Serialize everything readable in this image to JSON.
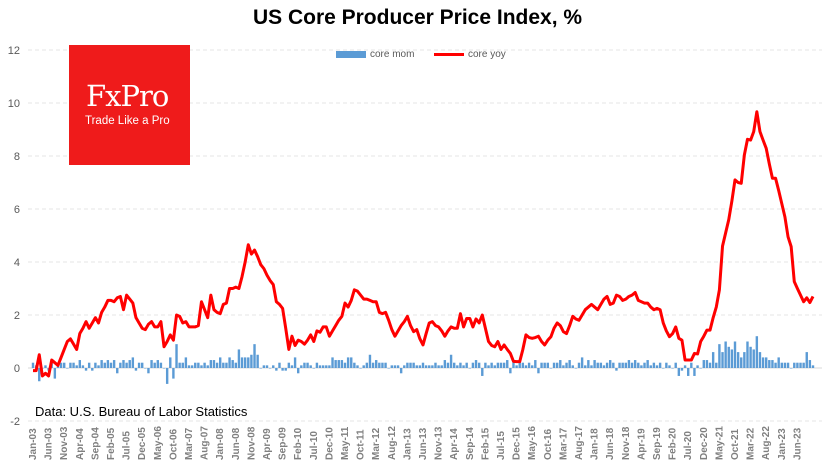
{
  "chart_data": {
    "type": "bar+line",
    "title": "US Core Producer Price Index, %",
    "source_note": "Data: U.S. Bureau of Labor Statistics",
    "frequency": "monthly",
    "start": "Jan-03",
    "x_tick_labels": [
      "Jan-03",
      "Jun-03",
      "Nov-03",
      "Apr-04",
      "Sep-04",
      "Feb-05",
      "Jul-05",
      "Dec-05",
      "May-06",
      "Oct-06",
      "Mar-07",
      "Aug-07",
      "Jan-08",
      "Jun-08",
      "Nov-08",
      "Apr-09",
      "Sep-09",
      "Feb-10",
      "Jul-10",
      "Dec-10",
      "May-11",
      "Oct-11",
      "Mar-12",
      "Aug-12",
      "Jan-13",
      "Jun-13",
      "Nov-13",
      "Apr-14",
      "Sep-14",
      "Feb-15",
      "Jul-15",
      "Dec-15",
      "May-16",
      "Oct-16",
      "Mar-17",
      "Aug-17",
      "Jan-18",
      "Jun-18",
      "Nov-18",
      "Apr-19",
      "Sep-19",
      "Feb-20",
      "Jul-20",
      "Dec-20",
      "May-21",
      "Oct-21",
      "Mar-22",
      "Aug-22",
      "Jan-23",
      "Jun-23"
    ],
    "y_ticks": [
      "12",
      "10",
      "8",
      "6",
      "4",
      "2",
      "0",
      "-2"
    ],
    "ylim": [
      -2,
      12
    ],
    "grid": true,
    "legend_position": "top",
    "series": [
      {
        "name": "core mom",
        "type": "bar",
        "color": "#5b9bd5",
        "values": [
          0.2,
          0.1,
          -0.5,
          0.0,
          0.1,
          -0.1,
          0.2,
          -0.4,
          0.1,
          0.2,
          0.2,
          0.0,
          0.2,
          0.2,
          0.1,
          0.3,
          0.1,
          -0.1,
          0.2,
          -0.1,
          0.2,
          0.1,
          0.3,
          0.2,
          0.3,
          0.2,
          0.3,
          -0.2,
          0.2,
          0.3,
          0.2,
          0.3,
          0.4,
          -0.1,
          0.2,
          0.2,
          0.0,
          -0.2,
          0.3,
          0.2,
          0.3,
          0.2,
          0.0,
          -0.6,
          0.4,
          -0.4,
          0.9,
          0.2,
          0.2,
          0.4,
          0.1,
          0.1,
          0.2,
          0.2,
          0.1,
          0.2,
          0.1,
          0.3,
          0.3,
          0.2,
          0.4,
          0.2,
          0.2,
          0.4,
          0.3,
          0.2,
          0.7,
          0.4,
          0.4,
          0.4,
          0.5,
          0.9,
          0.5,
          0.0,
          0.1,
          0.1,
          0.0,
          0.1,
          -0.1,
          0.2,
          -0.1,
          -0.1,
          0.2,
          0.1,
          0.4,
          -0.2,
          0.1,
          0.2,
          0.2,
          0.1,
          0.0,
          0.2,
          0.1,
          0.1,
          0.1,
          0.1,
          0.4,
          0.3,
          0.3,
          0.3,
          0.2,
          0.4,
          0.4,
          0.2,
          0.1,
          0.0,
          0.1,
          0.2,
          0.5,
          0.2,
          0.3,
          0.2,
          0.2,
          0.2,
          0.0,
          0.1,
          0.1,
          0.1,
          -0.2,
          0.1,
          0.2,
          0.2,
          0.2,
          0.1,
          0.1,
          0.2,
          0.1,
          0.1,
          0.1,
          0.2,
          0.1,
          0.1,
          0.3,
          0.2,
          0.5,
          0.2,
          0.1,
          0.2,
          0.1,
          0.2,
          0.0,
          0.2,
          0.3,
          0.2,
          -0.3,
          0.2,
          0.1,
          0.2,
          0.1,
          0.2,
          0.2,
          0.2,
          0.3,
          -0.2,
          0.3,
          0.1,
          0.3,
          0.2,
          0.1,
          0.2,
          0.1,
          0.3,
          -0.2,
          0.2,
          0.2,
          0.2,
          0.0,
          0.2,
          0.2,
          0.3,
          0.1,
          0.2,
          0.3,
          0.1,
          0.0,
          0.2,
          0.4,
          0.1,
          0.3,
          0.1,
          0.3,
          0.2,
          0.2,
          0.1,
          0.2,
          0.3,
          0.2,
          -0.1,
          0.2,
          0.2,
          0.2,
          0.3,
          0.2,
          0.3,
          0.2,
          0.1,
          0.2,
          0.3,
          0.1,
          0.2,
          0.1,
          0.2,
          0.0,
          0.2,
          0.1,
          0.0,
          0.2,
          -0.3,
          -0.1,
          0.1,
          -0.3,
          0.2,
          -0.3,
          0.1,
          0.0,
          0.3,
          0.3,
          0.2,
          0.6,
          0.2,
          0.9,
          0.6,
          1.0,
          0.8,
          0.7,
          1.0,
          0.6,
          0.4,
          0.6,
          1.0,
          0.8,
          0.7,
          1.2,
          0.6,
          0.4,
          0.4,
          0.3,
          0.3,
          0.2,
          0.4,
          0.2,
          0.2,
          0.2,
          0.0,
          0.2,
          0.2,
          0.2,
          0.2,
          0.6,
          0.3,
          0.1
        ]
      },
      {
        "name": "core yoy",
        "type": "line",
        "color": "#ff0000",
        "values": [
          -0.1,
          -0.1,
          0.5,
          -0.3,
          -0.2,
          -0.3,
          0.3,
          0.2,
          0.1,
          0.4,
          0.7,
          1.0,
          1.1,
          0.9,
          0.7,
          1.3,
          1.5,
          1.75,
          1.5,
          1.7,
          1.9,
          1.7,
          2.1,
          2.3,
          2.55,
          2.55,
          2.5,
          2.65,
          2.7,
          2.2,
          2.75,
          2.6,
          2.45,
          1.9,
          1.7,
          1.5,
          1.45,
          1.65,
          1.75,
          1.55,
          1.55,
          1.75,
          0.8,
          1.0,
          1.25,
          1.05,
          2.0,
          1.95,
          1.7,
          1.75,
          1.55,
          1.55,
          1.55,
          1.6,
          2.5,
          2.2,
          1.9,
          2.75,
          2.2,
          2.1,
          2.05,
          2.4,
          2.45,
          3.0,
          3.0,
          3.05,
          3.0,
          3.45,
          4.0,
          4.65,
          4.3,
          4.45,
          4.2,
          3.9,
          3.75,
          3.5,
          3.3,
          3.15,
          2.5,
          2.4,
          2.25,
          1.5,
          0.7,
          1.2,
          0.85,
          1.05,
          1.0,
          0.9,
          1.05,
          1.25,
          1.0,
          1.4,
          1.35,
          1.55,
          1.55,
          1.2,
          1.4,
          1.6,
          1.8,
          1.95,
          2.45,
          2.3,
          2.55,
          2.95,
          2.9,
          2.75,
          2.6,
          2.6,
          2.55,
          2.5,
          2.5,
          2.1,
          2.05,
          2.1,
          1.8,
          1.45,
          1.2,
          1.4,
          1.6,
          1.75,
          1.95,
          1.6,
          1.37,
          1.45,
          1.1,
          0.87,
          1.3,
          1.7,
          1.75,
          1.6,
          1.55,
          1.4,
          1.2,
          1.4,
          1.55,
          1.5,
          1.5,
          2.05,
          1.55,
          1.87,
          1.87,
          1.55,
          1.85,
          1.7,
          2.0,
          1.5,
          1.0,
          0.85,
          0.8,
          1.0,
          0.7,
          0.87,
          0.7,
          0.55,
          0.25,
          0.24,
          0.24,
          0.7,
          1.25,
          1.15,
          1.12,
          1.15,
          1.2,
          1.0,
          0.87,
          1.05,
          1.18,
          1.5,
          1.7,
          1.6,
          1.37,
          1.3,
          1.6,
          1.95,
          1.85,
          1.8,
          2.0,
          2.2,
          2.3,
          2.4,
          2.3,
          2.2,
          2.4,
          2.6,
          2.7,
          2.4,
          2.45,
          2.75,
          2.7,
          2.55,
          2.6,
          2.7,
          2.75,
          2.85,
          2.55,
          2.5,
          2.45,
          2.45,
          2.3,
          2.2,
          2.25,
          2.2,
          1.7,
          1.4,
          1.18,
          1.3,
          1.55,
          1.12,
          1.05,
          0.3,
          0.3,
          0.3,
          0.55,
          0.53,
          1.0,
          1.2,
          1.43,
          1.43,
          1.9,
          2.3,
          2.95,
          4.6,
          5.1,
          5.6,
          6.3,
          7.1,
          7.0,
          6.97,
          8.04,
          8.63,
          8.6,
          8.92,
          9.67,
          8.92,
          8.6,
          8.29,
          7.7,
          7.16,
          7.16,
          6.7,
          6.2,
          5.7,
          4.95,
          4.58,
          3.26,
          3.0,
          2.75,
          2.5,
          2.65,
          2.47,
          2.7
        ]
      }
    ]
  },
  "logo": {
    "brand": "FxPro",
    "tagline": "Trade Like a Pro",
    "color": "#ef1b1b"
  }
}
